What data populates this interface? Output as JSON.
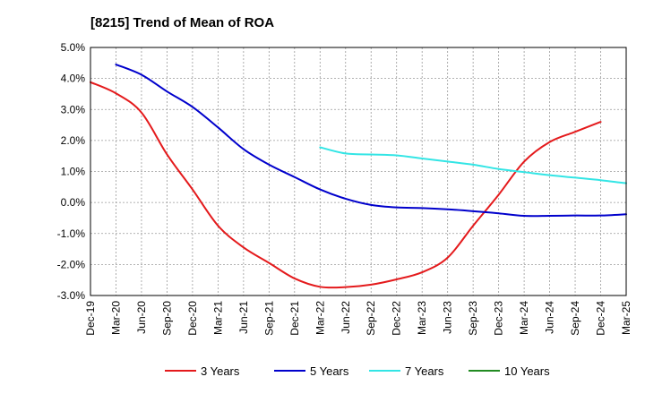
{
  "chart_data": {
    "type": "line",
    "title": "[8215]  Trend of Mean of ROA",
    "xlabel": "",
    "ylabel": "",
    "ylim": [
      -3.0,
      5.0
    ],
    "yticks": [
      "5.0%",
      "4.0%",
      "3.0%",
      "2.0%",
      "1.0%",
      "0.0%",
      "-1.0%",
      "-2.0%",
      "-3.0%"
    ],
    "ytick_values": [
      5,
      4,
      3,
      2,
      1,
      0,
      -1,
      -2,
      -3
    ],
    "xticks": [
      "Dec-19",
      "Mar-20",
      "Jun-20",
      "Sep-20",
      "Dec-20",
      "Mar-21",
      "Jun-21",
      "Sep-21",
      "Dec-21",
      "Mar-22",
      "Jun-22",
      "Sep-22",
      "Dec-22",
      "Mar-23",
      "Jun-23",
      "Sep-23",
      "Dec-23",
      "Mar-24",
      "Jun-24",
      "Sep-24",
      "Dec-24",
      "Mar-25"
    ],
    "grid": true,
    "legend_position": "bottom",
    "series": [
      {
        "name": "3 Years",
        "color": "#e41a1c",
        "start_index": 0,
        "values": [
          3.88,
          3.52,
          2.9,
          1.55,
          0.42,
          -0.75,
          -1.45,
          -1.95,
          -2.45,
          -2.72,
          -2.73,
          -2.65,
          -2.48,
          -2.25,
          -1.78,
          -0.75,
          0.25,
          1.32,
          1.95,
          2.28,
          2.6
        ]
      },
      {
        "name": "5 Years",
        "color": "#0000cc",
        "start_index": 1,
        "values": [
          4.45,
          4.12,
          3.58,
          3.08,
          2.42,
          1.72,
          1.22,
          0.82,
          0.42,
          0.12,
          -0.08,
          -0.16,
          -0.18,
          -0.22,
          -0.28,
          -0.35,
          -0.43,
          -0.43,
          -0.42,
          -0.42,
          -0.38
        ]
      },
      {
        "name": "7 Years",
        "color": "#33e5e5",
        "start_index": 9,
        "values": [
          1.78,
          1.58,
          1.55,
          1.52,
          1.42,
          1.32,
          1.22,
          1.08,
          0.98,
          0.88,
          0.8,
          0.72,
          0.62
        ]
      },
      {
        "name": "10 Years",
        "color": "#228b22",
        "start_index": 0,
        "values": []
      }
    ]
  }
}
